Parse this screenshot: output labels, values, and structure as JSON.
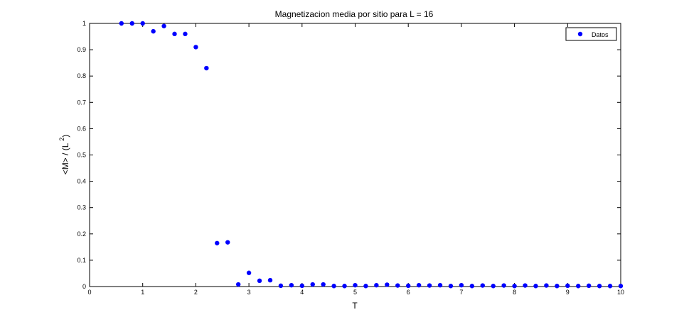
{
  "chart_data": {
    "type": "scatter",
    "title": "Magnetizacion media por sitio para L = 16",
    "xlabel": "T",
    "ylabel": "<M> / (L ^2)",
    "ylabel_main": "<M> / (L ",
    "ylabel_sup": "2",
    "ylabel_close": ")",
    "xlim": [
      0,
      10
    ],
    "ylim": [
      0,
      1
    ],
    "xticks": [
      "0",
      "1",
      "2",
      "3",
      "4",
      "5",
      "6",
      "7",
      "8",
      "9",
      "10"
    ],
    "yticks": [
      "0",
      "0.1",
      "0.2",
      "0.3",
      "0.4",
      "0.5",
      "0.6",
      "0.7",
      "0.8",
      "0.9",
      "1"
    ],
    "grid": false,
    "legend_position": "top-right",
    "marker_color": "#0000ff",
    "series": [
      {
        "name": "Datos",
        "x": [
          0.6,
          0.8,
          1.0,
          1.2,
          1.4,
          1.6,
          1.8,
          2.0,
          2.2,
          2.4,
          2.6,
          2.8,
          3.0,
          3.2,
          3.4,
          3.6,
          3.8,
          4.0,
          4.2,
          4.4,
          4.6,
          4.8,
          5.0,
          5.2,
          5.4,
          5.6,
          5.8,
          6.0,
          6.2,
          6.4,
          6.6,
          6.8,
          7.0,
          7.2,
          7.4,
          7.6,
          7.8,
          8.0,
          8.2,
          8.4,
          8.6,
          8.8,
          9.0,
          9.2,
          9.4,
          9.6,
          9.8,
          10.0
        ],
        "y": [
          1.0,
          1.0,
          1.0,
          0.97,
          0.99,
          0.96,
          0.96,
          0.91,
          0.83,
          0.165,
          0.168,
          0.008,
          0.052,
          0.022,
          0.024,
          0.003,
          0.005,
          0.003,
          0.008,
          0.008,
          0.002,
          0.002,
          0.005,
          0.002,
          0.005,
          0.007,
          0.004,
          0.003,
          0.005,
          0.004,
          0.005,
          0.002,
          0.005,
          0.002,
          0.004,
          0.002,
          0.004,
          0.002,
          0.004,
          0.002,
          0.004,
          0.002,
          0.003,
          0.002,
          0.003,
          0.002,
          0.002,
          0.002
        ]
      }
    ]
  }
}
